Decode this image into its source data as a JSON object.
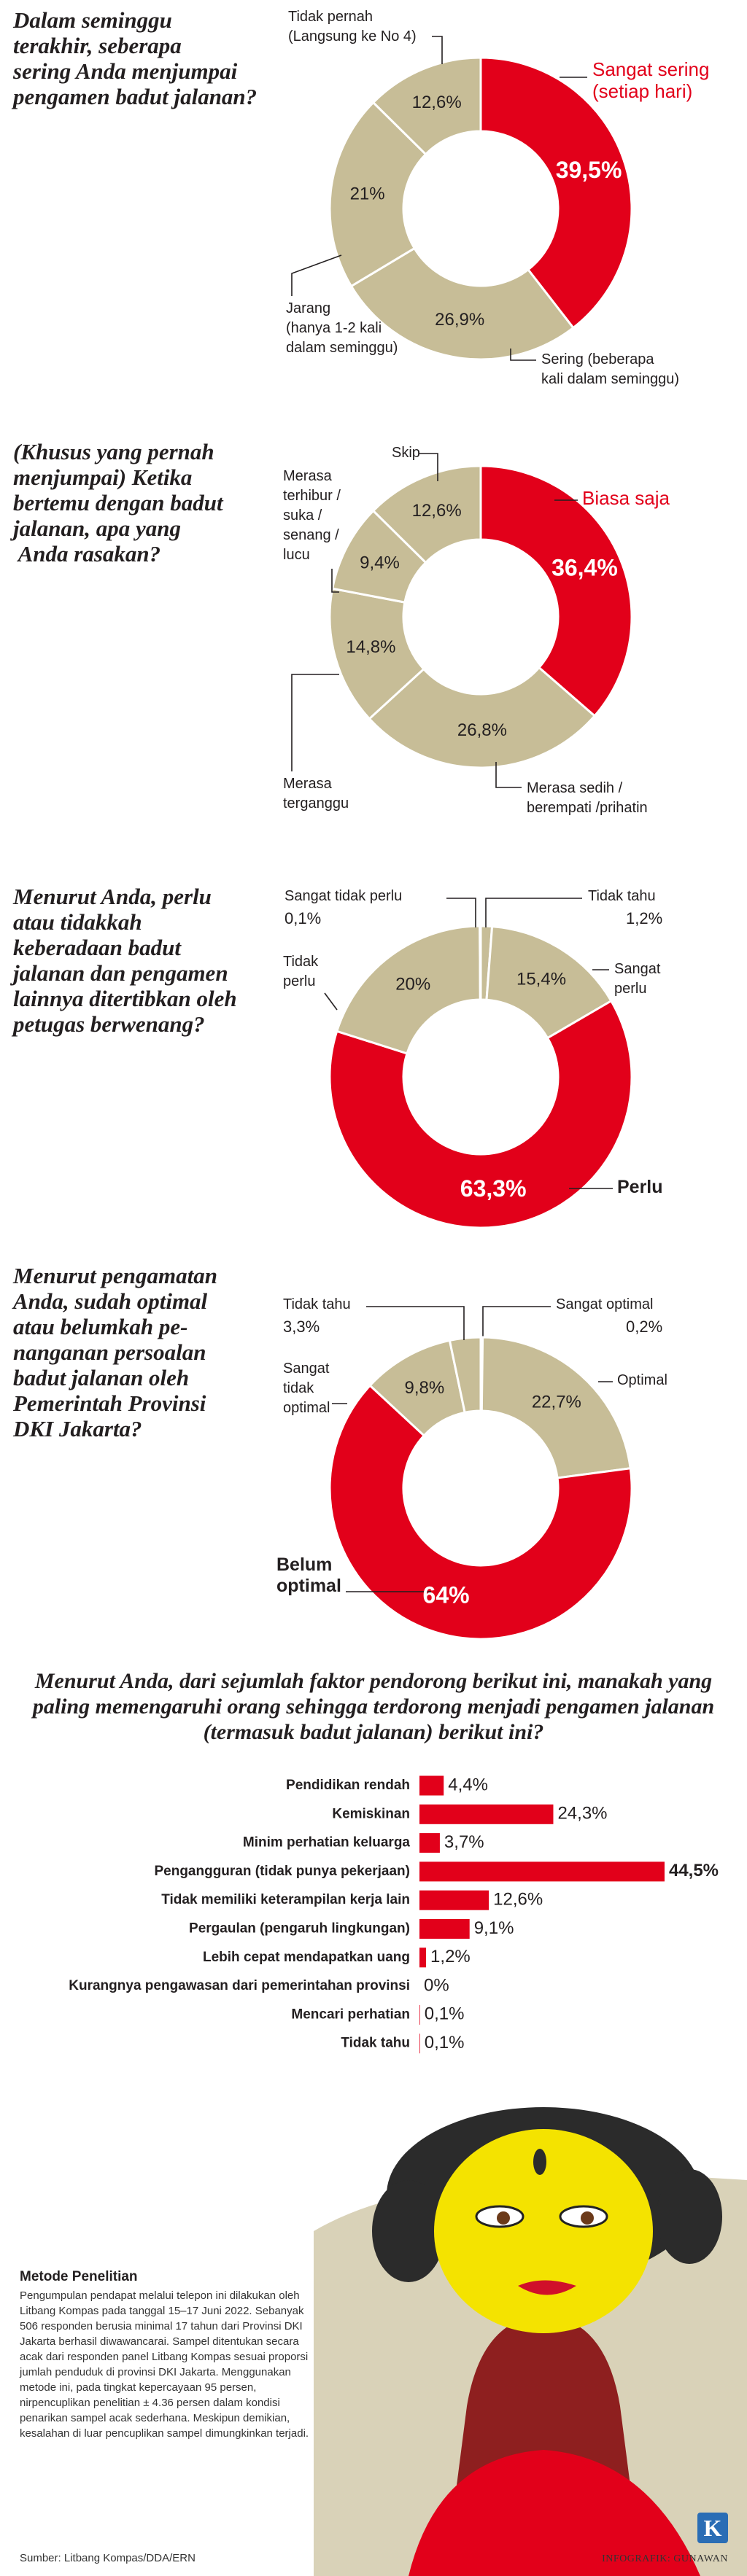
{
  "chart_data": [
    {
      "type": "donut",
      "title": "Dalam seminggu\nterakhir, seberapa\nsering Anda menjumpai\npengamen badut jalanan?",
      "categories": [
        "Sangat sering\n(setiap hari)",
        "Sering (beberapa\nkali dalam seminggu)",
        "Jarang\n(hanya 1-2 kali\ndalam seminggu)",
        "Tidak pernah\n(Langsung ke No 4)"
      ],
      "values": [
        39.5,
        26.9,
        21,
        12.6
      ],
      "value_labels": [
        "39,5%",
        "26,9%",
        "21%",
        "12,6%"
      ],
      "colors": [
        "#e2001a",
        "#c7bd97",
        "#c7bd97",
        "#c7bd97"
      ]
    },
    {
      "type": "donut",
      "title": "(Khusus yang pernah\nmenjumpai) Ketika\nbertemu dengan badut\njalanan, apa yang\n Anda rasakan?",
      "categories": [
        "Biasa saja",
        "Merasa sedih /\nberempati /prihatin",
        "Merasa\nterganggu",
        "Merasa\nterhibur /\nsuka /\nsenang /\nlucu",
        "Skip"
      ],
      "values": [
        36.4,
        26.8,
        14.8,
        9.4,
        12.6
      ],
      "value_labels": [
        "36,4%",
        "26,8%",
        "14,8%",
        "9,4%",
        "12,6%"
      ],
      "colors": [
        "#e2001a",
        "#c7bd97",
        "#c7bd97",
        "#c7bd97",
        "#c7bd97"
      ]
    },
    {
      "type": "donut",
      "title": "Menurut Anda, perlu\natau tidakkah\nkeberadaan badut\njalanan dan pengamen\nlainnya ditertibkan oleh\npetugas berwenang?",
      "categories": [
        "Tidak tahu",
        "Sangat\nperlu",
        "Perlu",
        "Tidak\nperlu",
        "Sangat tidak perlu"
      ],
      "values": [
        1.2,
        15.4,
        63.3,
        20,
        0.1
      ],
      "value_labels": [
        "1,2%",
        "15,4%",
        "63,3%",
        "20%",
        "0,1%"
      ],
      "colors": [
        "#c7bd97",
        "#c7bd97",
        "#e2001a",
        "#c7bd97",
        "#c7bd97"
      ]
    },
    {
      "type": "donut",
      "title": "Menurut pengamatan\nAnda, sudah optimal\natau belumkah pe-\nnanganan persoalan\nbadut jalanan oleh\nPemerintah Provinsi\nDKI Jakarta?",
      "categories": [
        "Sangat optimal",
        "Optimal",
        "Belum\noptimal",
        "Sangat\ntidak\noptimal",
        "Tidak tahu"
      ],
      "values": [
        0.2,
        22.7,
        64,
        9.8,
        3.3
      ],
      "value_labels": [
        "0,2%",
        "22,7%",
        "64%",
        "9,8%",
        "3,3%"
      ],
      "colors": [
        "#c7bd97",
        "#c7bd97",
        "#e2001a",
        "#c7bd97",
        "#c7bd97"
      ]
    },
    {
      "type": "bar",
      "title": "Menurut Anda, dari sejumlah faktor pendorong berikut ini, manakah yang paling memengaruhi orang sehingga terdorong menjadi pengamen jalanan (termasuk badut jalanan) berikut ini?",
      "categories": [
        "Pendidikan rendah",
        "Kemiskinan",
        "Minim perhatian keluarga",
        "Pengangguran (tidak punya pekerjaan)",
        "Tidak memiliki keterampilan kerja lain",
        "Pergaulan (pengaruh lingkungan)",
        "Lebih cepat mendapatkan uang",
        "Kurangnya pengawasan dari pemerintahan provinsi",
        "Mencari perhatian",
        "Tidak tahu"
      ],
      "values": [
        4.4,
        24.3,
        3.7,
        44.5,
        12.6,
        9.1,
        1.2,
        0,
        0.1,
        0.1
      ],
      "value_labels": [
        "4,4%",
        "24,3%",
        "3,7%",
        "44,5%",
        "12,6%",
        "9,1%",
        "1,2%",
        "0%",
        "0,1%",
        "0,1%"
      ],
      "color": "#e2001a"
    }
  ],
  "methodology": {
    "title": "Metode Penelitian",
    "body": "Pengumpulan pendapat melalui telepon ini dilakukan oleh Litbang Kompas pada tanggal 15–17 Juni 2022. Sebanyak 506 responden berusia minimal 17 tahun dari Provinsi DKI Jakarta berhasil diwawancarai. Sampel ditentukan secara acak dari responden panel Litbang Kompas sesuai proporsi jumlah penduduk di provinsi DKI Jakarta. Menggunakan metode ini, pada tingkat kepercayaan 95 persen, nirpencuplikan penelitian ± 4.36 persen dalam kondisi penarikan sampel acak sederhana. Meskipun demikian, kesalahan di luar pencuplikan sampel dimungkinkan terjadi."
  },
  "source": "Sumber: Litbang Kompas/DDA/ERN",
  "credit": "INFOGRAFIK: GUNAWAN",
  "logo": "K"
}
